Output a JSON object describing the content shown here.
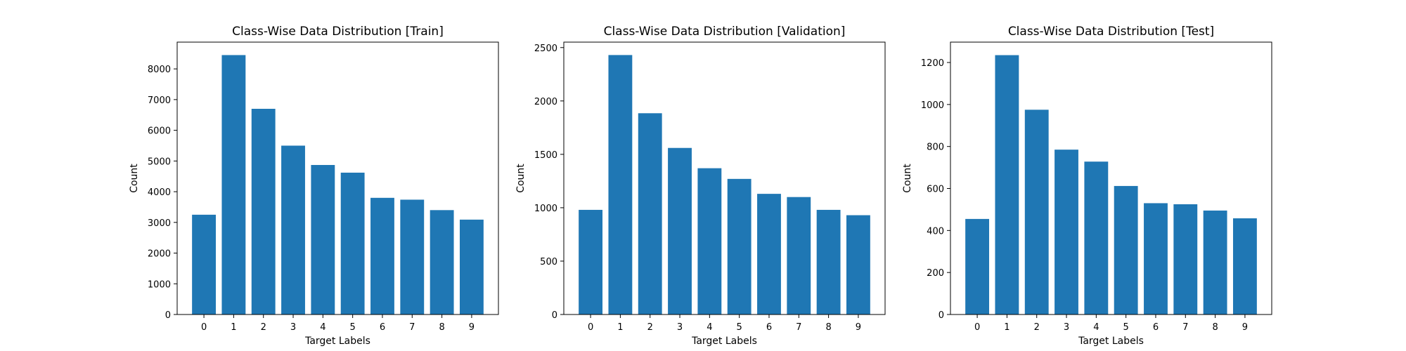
{
  "chart_data": [
    {
      "type": "bar",
      "title": "Class-Wise Data Distribution [Train]",
      "xlabel": "Target Labels",
      "ylabel": "Count",
      "categories": [
        "0",
        "1",
        "2",
        "3",
        "4",
        "5",
        "6",
        "7",
        "8",
        "9"
      ],
      "values": [
        3250,
        8450,
        6700,
        5500,
        4870,
        4620,
        3800,
        3740,
        3400,
        3090
      ],
      "ylim": [
        0,
        8872
      ],
      "yticks": [
        0,
        1000,
        2000,
        3000,
        4000,
        5000,
        6000,
        7000,
        8000
      ],
      "grid": false,
      "bar_color": "#1f77b4"
    },
    {
      "type": "bar",
      "title": "Class-Wise Data Distribution [Validation]",
      "xlabel": "Target Labels",
      "ylabel": "Count",
      "categories": [
        "0",
        "1",
        "2",
        "3",
        "4",
        "5",
        "6",
        "7",
        "8",
        "9"
      ],
      "values": [
        980,
        2430,
        1885,
        1560,
        1370,
        1270,
        1130,
        1100,
        980,
        930
      ],
      "ylim": [
        0,
        2551
      ],
      "yticks": [
        0,
        500,
        1000,
        1500,
        2000,
        2500
      ],
      "grid": false,
      "bar_color": "#1f77b4"
    },
    {
      "type": "bar",
      "title": "Class-Wise Data Distribution [Test]",
      "xlabel": "Target Labels",
      "ylabel": "Count",
      "categories": [
        "0",
        "1",
        "2",
        "3",
        "4",
        "5",
        "6",
        "7",
        "8",
        "9"
      ],
      "values": [
        455,
        1235,
        975,
        785,
        728,
        612,
        530,
        525,
        495,
        458
      ],
      "ylim": [
        0,
        1297
      ],
      "yticks": [
        0,
        200,
        400,
        600,
        800,
        1000,
        1200
      ],
      "grid": false,
      "bar_color": "#1f77b4"
    }
  ]
}
